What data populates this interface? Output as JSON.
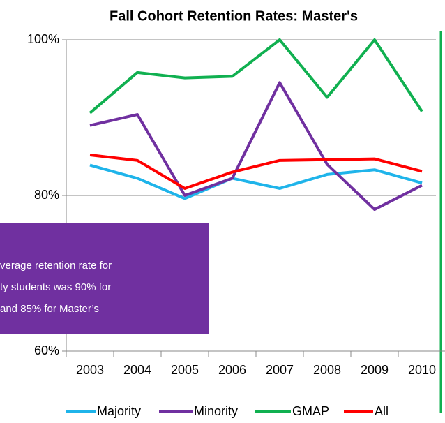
{
  "chart_data": {
    "type": "line",
    "title": "Fall Cohort Retention Rates: Master's",
    "categories": [
      "2003",
      "2004",
      "2005",
      "2006",
      "2007",
      "2008",
      "2009",
      "2010"
    ],
    "series": [
      {
        "name": "Majority",
        "color": "#1fb4ea",
        "values": [
          83.9,
          82.2,
          79.6,
          82.2,
          80.9,
          82.7,
          83.3,
          81.6
        ]
      },
      {
        "name": "Minority",
        "color": "#7030a0",
        "values": [
          89.0,
          90.4,
          80.0,
          82.2,
          94.5,
          84.0,
          78.2,
          81.3
        ]
      },
      {
        "name": "GMAP",
        "color": "#10b050",
        "values": [
          90.6,
          95.8,
          95.1,
          95.3,
          100,
          92.6,
          100,
          90.8
        ]
      },
      {
        "name": "All",
        "color": "#ff0000",
        "values": [
          85.2,
          84.5,
          80.9,
          83.0,
          84.5,
          84.6,
          84.7,
          83.1
        ]
      }
    ],
    "ylim": [
      60,
      100
    ],
    "yticks": [
      {
        "value": 60,
        "label": "60%"
      },
      {
        "value": 80,
        "label": "80%"
      },
      {
        "value": 100,
        "label": "100%"
      }
    ],
    "grid": true,
    "legend": "bottom",
    "annotation": {
      "lines": [
        "verage retention rate for",
        "ty students was 90% for",
        "and 85% for Master’s"
      ],
      "color": "#7030a0"
    }
  }
}
